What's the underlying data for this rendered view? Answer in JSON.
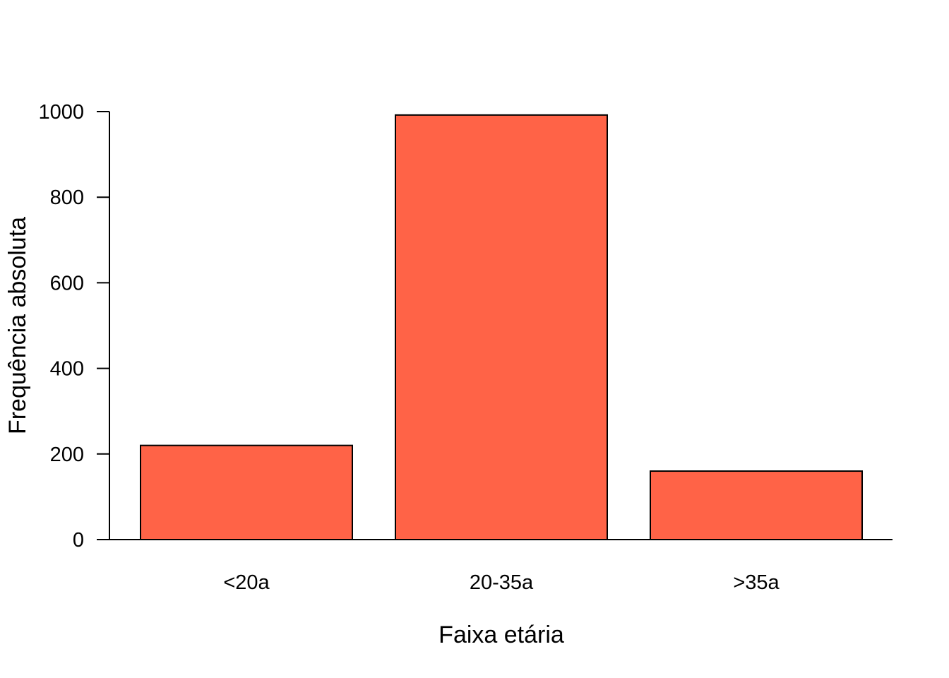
{
  "chart_data": {
    "type": "bar",
    "title": "",
    "xlabel": "Faixa etária",
    "ylabel": "Frequência absoluta",
    "categories": [
      "<20a",
      "20-35a",
      ">35a"
    ],
    "values": [
      220,
      992,
      160
    ],
    "ylim": [
      0,
      1000
    ],
    "yticks": [
      0,
      200,
      400,
      600,
      800,
      1000
    ],
    "ytick_labels": [
      "0",
      "200",
      "400",
      "600",
      "800",
      "1000"
    ],
    "bar_color": "#FF6347",
    "bar_edge_color": "#000000",
    "grid": false,
    "legend": "none"
  }
}
